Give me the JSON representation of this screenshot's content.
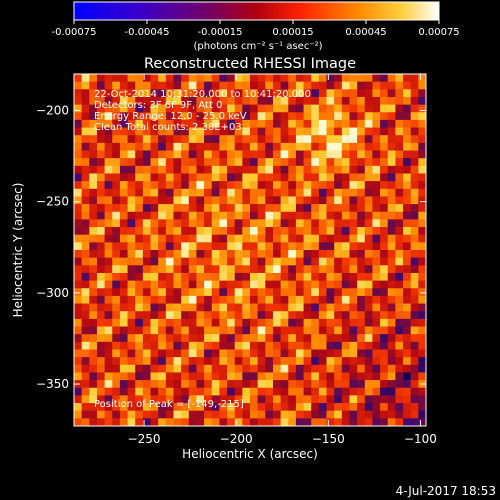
{
  "colorbar": {
    "ticks": [
      "-0.00075",
      "-0.00045",
      "-0.00015",
      "0.00015",
      "0.00045",
      "0.00075"
    ],
    "unit_label": "(photons cm⁻² s⁻¹ asec⁻²)",
    "range": [
      -0.00075,
      0.00075
    ]
  },
  "footer": {
    "timestamp": "4-Jul-2017 18:53"
  },
  "chart_data": {
    "type": "heatmap",
    "title": "Reconstructed RHESSI Image",
    "xlabel": "Heliocentric X (arcsec)",
    "ylabel": "Heliocentric Y (arcsec)",
    "xlim": [
      -288,
      -97
    ],
    "ylim": [
      -373,
      -180
    ],
    "x_ticks": [
      -250,
      -200,
      -150,
      -100
    ],
    "y_ticks": [
      -200,
      -250,
      -300,
      -350
    ],
    "x_tick_labels": [
      "−250",
      "−200",
      "−150",
      "−100"
    ],
    "y_tick_labels": [
      "−200",
      "−250",
      "−300",
      "−350"
    ],
    "peak": [
      -149,
      -215
    ],
    "annotations": [
      "22-Oct-2014 10:31:20.000 to 10:41:20.000",
      "Detectors: 3F 6F 9F, Att 0",
      "Energy Range: 12.0 - 25.0 keV",
      "Clean    Total counts: 2.38E+03"
    ],
    "peak_label": "Position of Peak = [-149,-215]"
  }
}
